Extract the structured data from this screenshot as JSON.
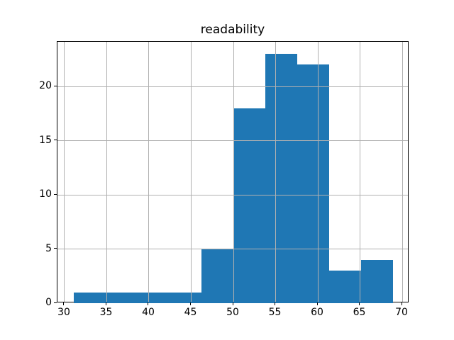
{
  "figure": {
    "background": "#ffffff"
  },
  "chart_data": {
    "type": "bar",
    "subtype": "histogram",
    "title": "readability",
    "xlabel": "",
    "ylabel": "",
    "bin_edges": [
      31.1,
      34.88,
      38.66,
      42.44,
      46.22,
      50.0,
      53.78,
      57.56,
      61.34,
      65.12,
      68.9
    ],
    "counts": [
      1,
      1,
      1,
      1,
      5,
      18,
      23,
      22,
      3,
      4
    ],
    "x_ticks": [
      30,
      35,
      40,
      45,
      50,
      55,
      60,
      65,
      70
    ],
    "y_ticks": [
      0,
      5,
      10,
      15,
      20
    ],
    "xlim": [
      29.16,
      70.84
    ],
    "ylim": [
      0,
      24.15
    ],
    "grid": true,
    "grid_over_bars": true,
    "legend": "none",
    "bar_color": "#1f77b4",
    "grid_color": "#b0b0b0",
    "axis_color": "#000000",
    "background_color": "#ffffff"
  }
}
